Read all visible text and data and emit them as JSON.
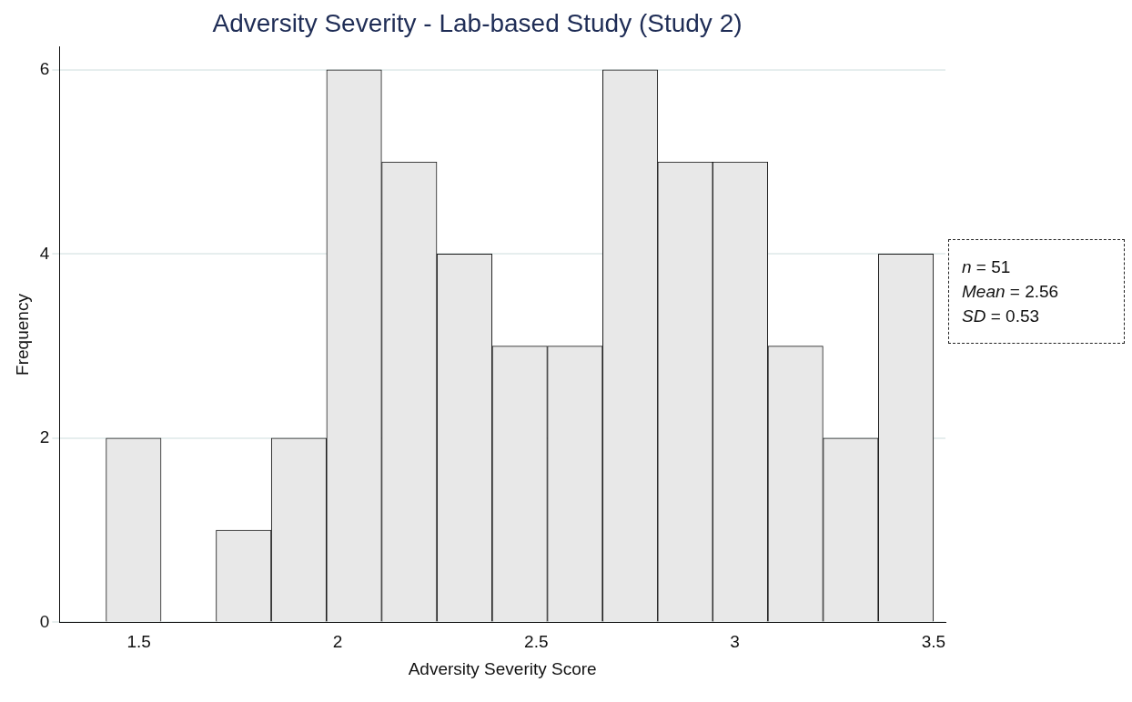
{
  "chart_data": {
    "type": "histogram",
    "title": "Adversity Severity - Lab-based Study (Study 2)",
    "xlabel": "Adversity Severity Score",
    "ylabel": "Frequency",
    "bins": [
      1.417,
      1.556,
      1.694,
      1.833,
      1.972,
      2.111,
      2.25,
      2.389,
      2.528,
      2.667,
      2.806,
      2.944,
      3.083,
      3.222,
      3.361,
      3.5
    ],
    "values": [
      2,
      0,
      1,
      2,
      6,
      5,
      4,
      3,
      3,
      6,
      5,
      5,
      3,
      2,
      4
    ],
    "color": "#e8e8e8",
    "xlim": [
      1.3,
      3.53
    ],
    "xticks": [
      1.5,
      2,
      2.5,
      3,
      3.5
    ],
    "ylim": [
      0,
      6.25
    ],
    "yticks": [
      0,
      2,
      4,
      6
    ],
    "grid": "y",
    "annotations": [
      "n = 51",
      "Mean = 2.56",
      "SD = 0.53"
    ]
  }
}
